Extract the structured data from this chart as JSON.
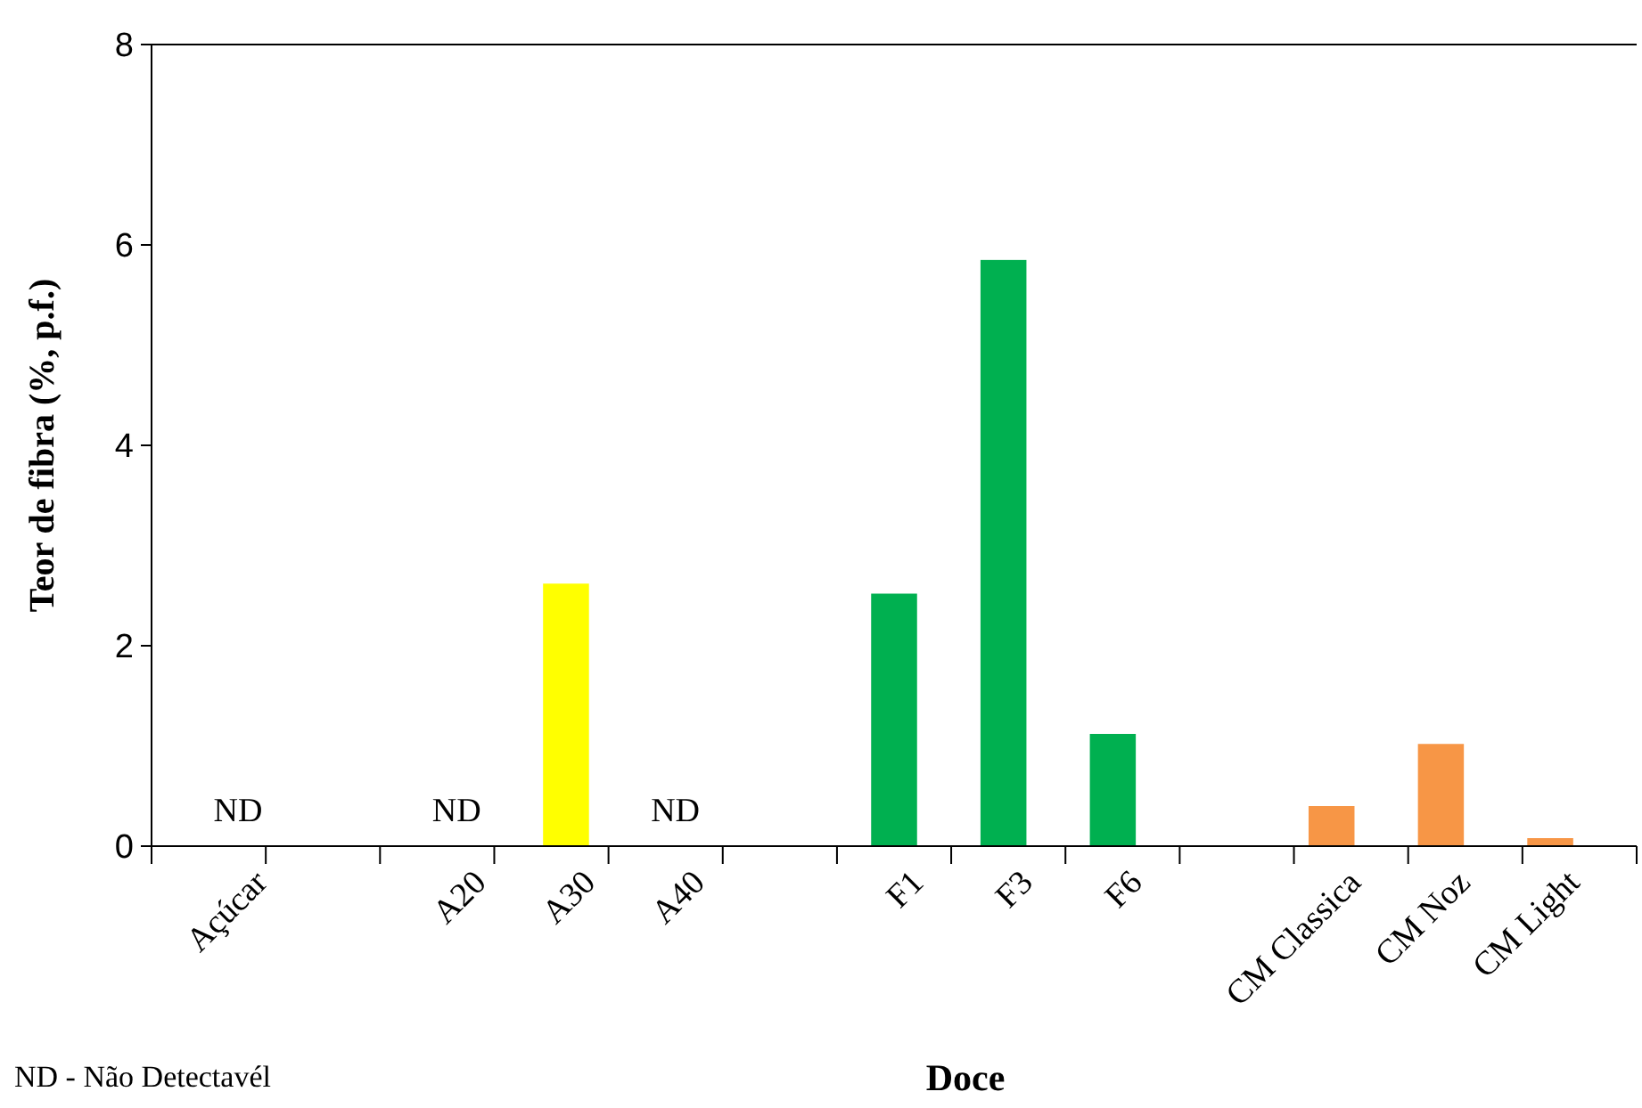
{
  "chart_data": {
    "type": "bar",
    "xlabel": "Doce",
    "ylabel": "Teor de fibra (%, p.f.)",
    "categories": [
      "Açúcar",
      null,
      "A20",
      "A30",
      "A40",
      null,
      "F1",
      "F3",
      "F6",
      null,
      "CM Classica",
      "CM Noz",
      "CM Light"
    ],
    "values": [
      null,
      null,
      null,
      2.62,
      null,
      null,
      2.52,
      5.85,
      1.12,
      null,
      0.4,
      1.02,
      0.08
    ],
    "colors": [
      null,
      null,
      null,
      "#ffff00",
      null,
      null,
      "#00b050",
      "#00b050",
      "#00b050",
      null,
      "#f79646",
      "#f79646",
      "#f79646"
    ],
    "value_labels": [
      "ND",
      null,
      "ND",
      null,
      "ND",
      null,
      null,
      null,
      null,
      null,
      null,
      null,
      null
    ],
    "ylim": [
      0,
      8
    ],
    "yticks": [
      0,
      2,
      4,
      6,
      8
    ],
    "grid": false,
    "annotations": [
      "ND - Não Detectavél"
    ]
  }
}
